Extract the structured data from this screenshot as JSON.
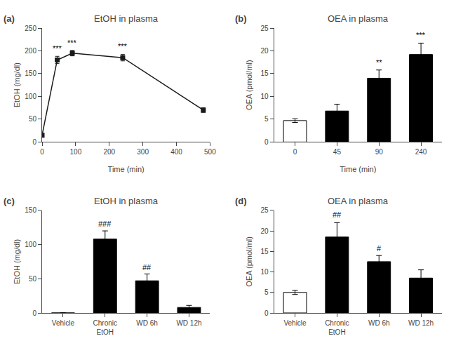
{
  "chart_data": [
    {
      "type": "line",
      "panel_label": "(a)",
      "title": "EtOH in plasma",
      "xlabel": "Time (min)",
      "ylabel": "EtOH (mg/dl)",
      "x": [
        0,
        45,
        90,
        240,
        480
      ],
      "values": [
        15,
        180,
        195,
        185,
        70
      ],
      "yerr": [
        2,
        8,
        6,
        7,
        5
      ],
      "color": "#1a1a1a",
      "marker": "square",
      "xlim": [
        0,
        500
      ],
      "ylim": [
        0,
        250
      ],
      "xticks": [
        0,
        100,
        200,
        300,
        400,
        500
      ],
      "yticks": [
        0,
        50,
        100,
        150,
        200,
        250
      ],
      "grid": false,
      "annotations": [
        {
          "x": 45,
          "y": 193,
          "text": "***"
        },
        {
          "x": 90,
          "y": 206,
          "text": "***"
        },
        {
          "x": 240,
          "y": 197,
          "text": "***"
        }
      ]
    },
    {
      "type": "bar",
      "panel_label": "(b)",
      "title": "OEA in plasma",
      "xlabel": "Time (min)",
      "ylabel": "OEA (pmol/ml)",
      "categories": [
        "0",
        "45",
        "90",
        "240"
      ],
      "values": [
        4.7,
        6.8,
        14.0,
        19.2
      ],
      "yerr": [
        0.4,
        1.5,
        1.8,
        2.5
      ],
      "colors": [
        "white",
        "black",
        "black",
        "black"
      ],
      "ylim": [
        0,
        25
      ],
      "yticks": [
        0,
        5,
        10,
        15,
        20,
        25
      ],
      "grid": false,
      "annotations": [
        {
          "category": "90",
          "y": 16.3,
          "text": "**"
        },
        {
          "category": "240",
          "y": 22.2,
          "text": "***"
        }
      ]
    },
    {
      "type": "bar",
      "panel_label": "(c)",
      "title": "EtOH in plasma",
      "ylabel": "EtOH (mg/dl)",
      "categories": [
        "Vehicle",
        "Chronic\nEtOH",
        "WD 6h",
        "WD 12h"
      ],
      "values": [
        0,
        108,
        47,
        8
      ],
      "yerr": [
        0,
        12,
        10,
        3
      ],
      "colors": [
        "white",
        "black",
        "black",
        "black"
      ],
      "ylim": [
        0,
        150
      ],
      "yticks": [
        0,
        50,
        100,
        150
      ],
      "grid": false,
      "annotations": [
        {
          "category": "Chronic\nEtOH",
          "y": 122,
          "text": "###"
        },
        {
          "category": "WD 6h",
          "y": 59,
          "text": "##"
        }
      ]
    },
    {
      "type": "bar",
      "panel_label": "(d)",
      "title": "OEA in plasma",
      "ylabel": "OEA (pmol/ml)",
      "categories": [
        "Vehicle",
        "Chronic\nEtOH",
        "WD 6h",
        "WD 12h"
      ],
      "values": [
        5.0,
        18.5,
        12.5,
        8.5
      ],
      "yerr": [
        0.5,
        3.5,
        1.5,
        2.0
      ],
      "colors": [
        "white",
        "black",
        "black",
        "black"
      ],
      "ylim": [
        0,
        25
      ],
      "yticks": [
        0,
        5,
        10,
        15,
        20,
        25
      ],
      "grid": false,
      "annotations": [
        {
          "category": "Chronic\nEtOH",
          "y": 22.5,
          "text": "##"
        },
        {
          "category": "WD 6h",
          "y": 14.3,
          "text": "#"
        }
      ]
    }
  ]
}
